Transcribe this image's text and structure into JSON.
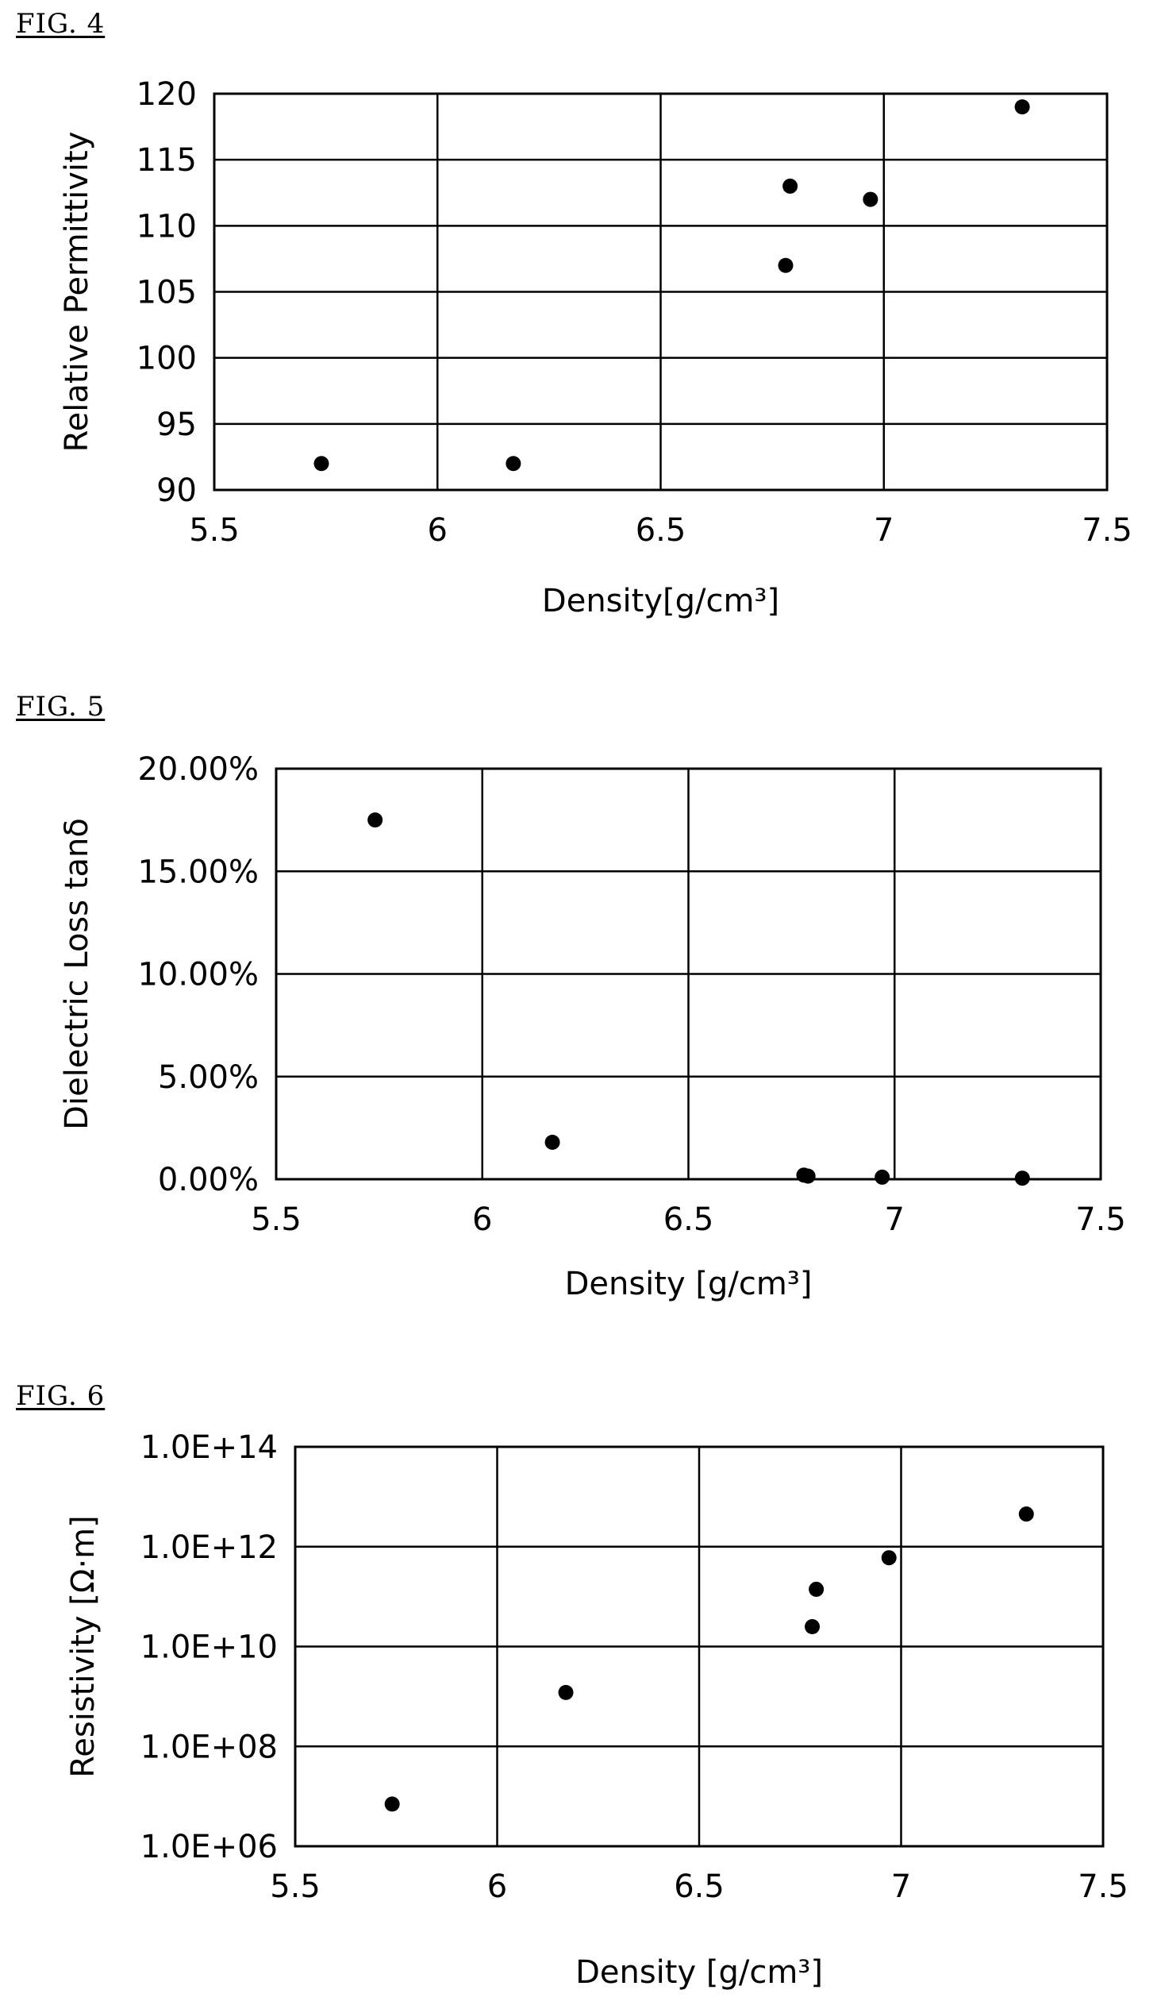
{
  "figures": [
    {
      "label": "FIG. 4"
    },
    {
      "label": "FIG. 5"
    },
    {
      "label": "FIG. 6"
    }
  ],
  "chart_data": [
    {
      "type": "scatter",
      "title": "",
      "xlabel": "Density[g/cm³]",
      "ylabel": "Relative Permittivity",
      "xlim": [
        5.5,
        7.5
      ],
      "ylim": [
        90,
        120
      ],
      "xticks": [
        5.5,
        6,
        6.5,
        7,
        7.5
      ],
      "xtick_labels": [
        "5.5",
        "6",
        "6.5",
        "7",
        "7.5"
      ],
      "yticks": [
        90,
        95,
        100,
        105,
        110,
        115,
        120
      ],
      "ytick_labels": [
        "90",
        "95",
        "100",
        "105",
        "110",
        "115",
        "120"
      ],
      "y_scale": "linear",
      "grid": true,
      "points": [
        {
          "x": 5.74,
          "y": 92
        },
        {
          "x": 6.17,
          "y": 92
        },
        {
          "x": 6.78,
          "y": 107
        },
        {
          "x": 6.79,
          "y": 113
        },
        {
          "x": 6.97,
          "y": 112
        },
        {
          "x": 7.31,
          "y": 119
        }
      ]
    },
    {
      "type": "scatter",
      "title": "",
      "xlabel": "Density [g/cm³]",
      "ylabel": "Dielectric Loss tanδ",
      "xlim": [
        5.5,
        7.5
      ],
      "ylim": [
        0,
        20
      ],
      "xticks": [
        5.5,
        6,
        6.5,
        7,
        7.5
      ],
      "xtick_labels": [
        "5.5",
        "6",
        "6.5",
        "7",
        "7.5"
      ],
      "yticks": [
        0,
        5,
        10,
        15,
        20
      ],
      "ytick_labels": [
        "0.00%",
        "5.00%",
        "10.00%",
        "15.00%",
        "20.00%"
      ],
      "y_unit": "percent",
      "y_scale": "linear",
      "grid": true,
      "points": [
        {
          "x": 5.74,
          "y": 17.5
        },
        {
          "x": 6.17,
          "y": 1.8
        },
        {
          "x": 6.78,
          "y": 0.2
        },
        {
          "x": 6.79,
          "y": 0.15
        },
        {
          "x": 6.97,
          "y": 0.1
        },
        {
          "x": 7.31,
          "y": 0.05
        }
      ]
    },
    {
      "type": "scatter",
      "title": "",
      "xlabel": "Density [g/cm³]",
      "ylabel": "Resistivity [Ω·m]",
      "xlim": [
        5.5,
        7.5
      ],
      "ylim": [
        1000000.0,
        100000000000000.0
      ],
      "xticks": [
        5.5,
        6,
        6.5,
        7,
        7.5
      ],
      "xtick_labels": [
        "5.5",
        "6",
        "6.5",
        "7",
        "7.5"
      ],
      "yticks": [
        1000000.0,
        100000000.0,
        10000000000.0,
        1000000000000.0,
        100000000000000.0
      ],
      "ytick_labels": [
        "1.0E+06",
        "1.0E+08",
        "1.0E+10",
        "1.0E+12",
        "1.0E+14"
      ],
      "y_scale": "log",
      "grid": true,
      "points": [
        {
          "x": 5.74,
          "y": 7000000.0
        },
        {
          "x": 6.17,
          "y": 1200000000.0
        },
        {
          "x": 6.78,
          "y": 25000000000.0
        },
        {
          "x": 6.79,
          "y": 140000000000.0
        },
        {
          "x": 6.97,
          "y": 600000000000.0
        },
        {
          "x": 7.31,
          "y": 4500000000000.0
        }
      ]
    }
  ]
}
